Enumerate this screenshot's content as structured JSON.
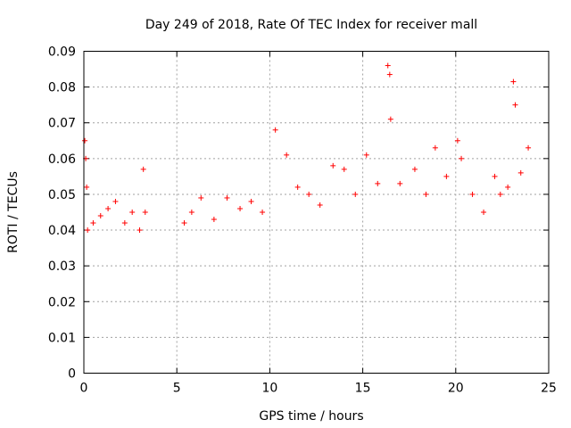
{
  "chart_data": {
    "type": "scatter",
    "title": "Day 249 of 2018, Rate Of TEC Index for receiver mall",
    "xlabel": "GPS time / hours",
    "ylabel": "ROTI / TECUs",
    "xlim": [
      0,
      25
    ],
    "ylim": [
      0,
      0.09
    ],
    "x_ticks": [
      0,
      5,
      10,
      15,
      20,
      25
    ],
    "x_tick_labels": [
      "0",
      "5",
      "10",
      "15",
      "20",
      "25"
    ],
    "y_ticks": [
      0,
      0.01,
      0.02,
      0.03,
      0.04,
      0.05,
      0.06,
      0.07,
      0.08,
      0.09
    ],
    "y_tick_labels": [
      "0",
      "0.01",
      "0.02",
      "0.03",
      "0.04",
      "0.05",
      "0.06",
      "0.07",
      "0.08",
      "0.09"
    ],
    "grid": true,
    "marker": "+",
    "color": "#ff0000",
    "series": [
      {
        "name": "ROTI",
        "x": [
          0.05,
          0.1,
          0.15,
          0.2,
          0.5,
          0.9,
          1.3,
          1.7,
          2.2,
          2.6,
          3.0,
          3.2,
          3.3,
          5.4,
          5.8,
          6.3,
          7.0,
          7.7,
          8.4,
          9.0,
          9.6,
          10.3,
          10.9,
          11.5,
          12.1,
          12.7,
          13.4,
          14.0,
          14.6,
          15.2,
          15.8,
          16.35,
          16.45,
          16.5,
          17.0,
          17.8,
          18.4,
          18.9,
          19.5,
          20.1,
          20.3,
          20.9,
          21.5,
          22.1,
          22.4,
          22.8,
          23.1,
          23.2,
          23.5,
          23.9
        ],
        "y": [
          0.065,
          0.06,
          0.052,
          0.04,
          0.042,
          0.044,
          0.046,
          0.048,
          0.042,
          0.045,
          0.04,
          0.057,
          0.045,
          0.042,
          0.045,
          0.049,
          0.043,
          0.049,
          0.046,
          0.048,
          0.045,
          0.068,
          0.061,
          0.052,
          0.05,
          0.047,
          0.058,
          0.057,
          0.05,
          0.061,
          0.053,
          0.086,
          0.0835,
          0.071,
          0.053,
          0.057,
          0.05,
          0.063,
          0.055,
          0.065,
          0.06,
          0.05,
          0.045,
          0.055,
          0.05,
          0.052,
          0.0815,
          0.075,
          0.056,
          0.063
        ]
      }
    ]
  }
}
